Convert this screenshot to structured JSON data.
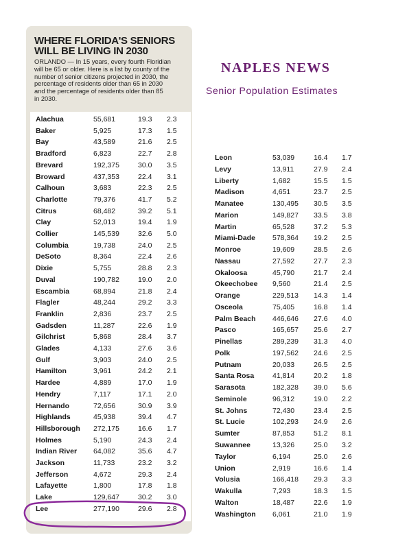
{
  "article": {
    "headline_line1": "WHERE FLORIDA'S SENIORS",
    "headline_line2": "WILL BE LIVING IN 2030",
    "dateline": "ORLANDO —",
    "intro_lines": [
      "In 15 years, every fourth Floridian",
      "will be 65 or older. Here is a list by county of the",
      "number of senior citizens projected in 2030, the",
      "percentage of residents older than 65 in 2030",
      "and the percentage of residents older than 85",
      "in 2030."
    ]
  },
  "overlay": {
    "title": "NAPLES NEWS",
    "subtitle": "Senior Population Estimates",
    "highlight_color": "#8b2a9a",
    "accent_color": "#6b2070"
  },
  "table_left": {
    "rows": [
      [
        "Alachua",
        "55,681",
        "19.3",
        "2.3"
      ],
      [
        "Baker",
        "5,925",
        "17.3",
        "1.5"
      ],
      [
        "Bay",
        "43,589",
        "21.6",
        "2.5"
      ],
      [
        "Bradford",
        "6,823",
        "22.7",
        "2.8"
      ],
      [
        "Brevard",
        "192,375",
        "30.0",
        "3.5"
      ],
      [
        "Broward",
        "437,353",
        "22.4",
        "3.1"
      ],
      [
        "Calhoun",
        "3,683",
        "22.3",
        "2.5"
      ],
      [
        "Charlotte",
        "79,376",
        "41.7",
        "5.2"
      ],
      [
        "Citrus",
        "68,482",
        "39.2",
        "5.1"
      ],
      [
        "Clay",
        "52,013",
        "19.4",
        "1.9"
      ],
      [
        "Collier",
        "145,539",
        "32.6",
        "5.0"
      ],
      [
        "Columbia",
        "19,738",
        "24.0",
        "2.5"
      ],
      [
        "DeSoto",
        "8,364",
        "22.4",
        "2.6"
      ],
      [
        "Dixie",
        "5,755",
        "28.8",
        "2.3"
      ],
      [
        "Duval",
        "190,782",
        "19.0",
        "2.0"
      ],
      [
        "Escambia",
        "68,894",
        "21.8",
        "2.4"
      ],
      [
        "Flagler",
        "48,244",
        "29.2",
        "3.3"
      ],
      [
        "Franklin",
        "2,836",
        "23.7",
        "2.5"
      ],
      [
        "Gadsden",
        "11,287",
        "22.6",
        "1.9"
      ],
      [
        "Gilchrist",
        "5,868",
        "28.4",
        "3.7"
      ],
      [
        "Glades",
        "4,133",
        "27.6",
        "3.6"
      ],
      [
        "Gulf",
        "3,903",
        "24.0",
        "2.5"
      ],
      [
        "Hamilton",
        "3,961",
        "24.2",
        "2.1"
      ],
      [
        "Hardee",
        "4,889",
        "17.0",
        "1.9"
      ],
      [
        "Hendry",
        "7,117",
        "17.1",
        "2.0"
      ],
      [
        "Hernando",
        "72,656",
        "30.9",
        "3.9"
      ],
      [
        "Highlands",
        "45,938",
        "39.4",
        "4.7"
      ],
      [
        "Hillsborough",
        "272,175",
        "16.6",
        "1.7"
      ],
      [
        "Holmes",
        "5,190",
        "24.3",
        "2.4"
      ],
      [
        "Indian River",
        "64,082",
        "35.6",
        "4.7"
      ],
      [
        "Jackson",
        "11,733",
        "23.2",
        "3.2"
      ],
      [
        "Jefferson",
        "4,672",
        "29.3",
        "2.4"
      ],
      [
        "Lafayette",
        "1,800",
        "17.8",
        "1.8"
      ],
      [
        "Lake",
        "129,647",
        "30.2",
        "3.0"
      ],
      [
        "Lee",
        "277,190",
        "29.6",
        "2.8"
      ]
    ]
  },
  "table_right": {
    "rows": [
      [
        "Leon",
        "53,039",
        "16.4",
        "1.7"
      ],
      [
        "Levy",
        "13,911",
        "27.9",
        "2.4"
      ],
      [
        "Liberty",
        "1,682",
        "15.5",
        "1.5"
      ],
      [
        "Madison",
        "4,651",
        "23.7",
        "2.5"
      ],
      [
        "Manatee",
        "130,495",
        "30.5",
        "3.5"
      ],
      [
        "Marion",
        "149,827",
        "33.5",
        "3.8"
      ],
      [
        "Martin",
        "65,528",
        "37.2",
        "5.3"
      ],
      [
        "Miami-Dade",
        "578,364",
        "19.2",
        "2.5"
      ],
      [
        "Monroe",
        "19,609",
        "28.5",
        "2.6"
      ],
      [
        "Nassau",
        "27,592",
        "27.7",
        "2.3"
      ],
      [
        "Okaloosa",
        "45,790",
        "21.7",
        "2.4"
      ],
      [
        "Okeechobee",
        "9,560",
        "21.4",
        "2.5"
      ],
      [
        "Orange",
        "229,513",
        "14.3",
        "1.4"
      ],
      [
        "Osceola",
        "75,405",
        "16.8",
        "1.4"
      ],
      [
        "Palm Beach",
        "446,646",
        "27.6",
        "4.0"
      ],
      [
        "Pasco",
        "165,657",
        "25.6",
        "2.7"
      ],
      [
        "Pinellas",
        "289,239",
        "31.3",
        "4.0"
      ],
      [
        "Polk",
        "197,562",
        "24.6",
        "2.5"
      ],
      [
        "Putnam",
        "20,033",
        "26.5",
        "2.5"
      ],
      [
        "Santa Rosa",
        "41,814",
        "20.2",
        "1.8"
      ],
      [
        "Sarasota",
        "182,328",
        "39.0",
        "5.6"
      ],
      [
        "Seminole",
        "96,312",
        "19.0",
        "2.2"
      ],
      [
        "St. Johns",
        "72,430",
        "23.4",
        "2.5"
      ],
      [
        "St. Lucie",
        "102,293",
        "24.9",
        "2.6"
      ],
      [
        "Sumter",
        "87,853",
        "51.2",
        "8.1"
      ],
      [
        "Suwannee",
        "13,326",
        "25.0",
        "3.2"
      ],
      [
        "Taylor",
        "6,194",
        "25.0",
        "2.6"
      ],
      [
        "Union",
        "2,919",
        "16.6",
        "1.4"
      ],
      [
        "Volusia",
        "166,418",
        "29.3",
        "3.3"
      ],
      [
        "Wakulla",
        "7,293",
        "18.3",
        "1.5"
      ],
      [
        "Walton",
        "18,487",
        "22.6",
        "1.9"
      ],
      [
        "Washington",
        "6,061",
        "21.0",
        "1.9"
      ]
    ]
  }
}
